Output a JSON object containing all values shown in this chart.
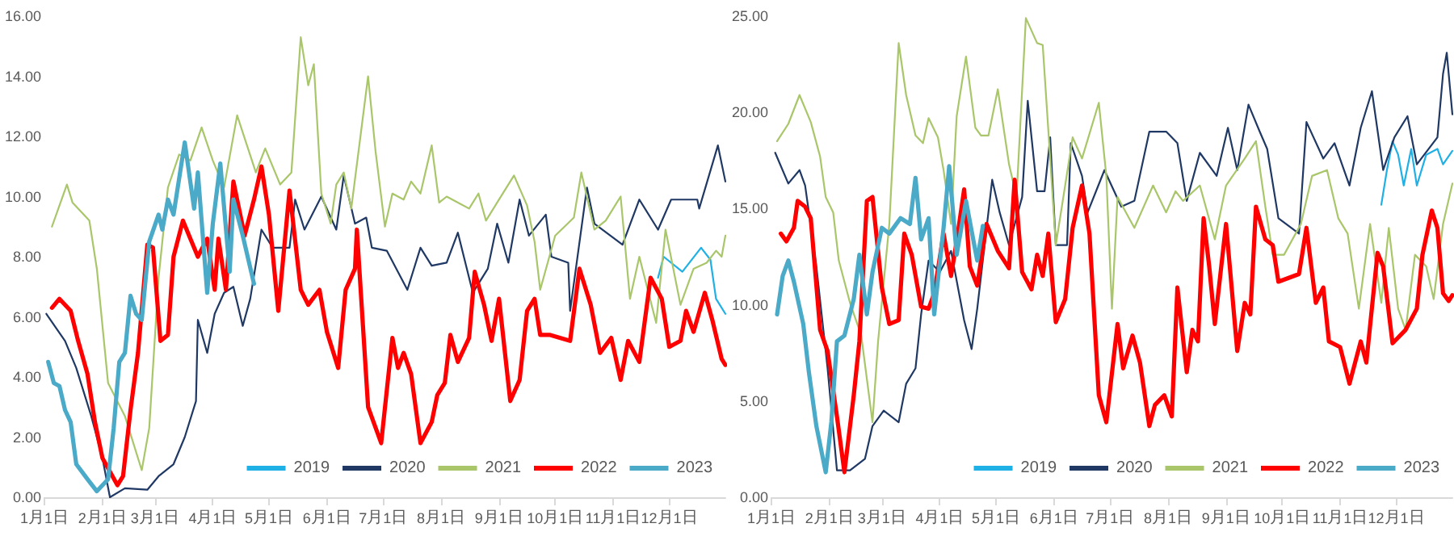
{
  "chart_data": [
    {
      "type": "line",
      "xlim": [
        "--01-01",
        "--12-31"
      ],
      "xticks": [
        {
          "value": "--01-01",
          "label": "1月1日"
        },
        {
          "value": "--02-01",
          "label": "2月1日"
        },
        {
          "value": "--03-01",
          "label": "3月1日"
        },
        {
          "value": "--04-01",
          "label": "4月1日"
        },
        {
          "value": "--05-01",
          "label": "5月1日"
        },
        {
          "value": "--06-01",
          "label": "6月1日"
        },
        {
          "value": "--07-01",
          "label": "7月1日"
        },
        {
          "value": "--08-01",
          "label": "8月1日"
        },
        {
          "value": "--09-01",
          "label": "9月1日"
        },
        {
          "value": "--10-01",
          "label": "10月1日"
        },
        {
          "value": "--11-01",
          "label": "11月1日"
        },
        {
          "value": "--12-01",
          "label": "12月1日"
        }
      ],
      "ylim": [
        0,
        16
      ],
      "yticks": [
        {
          "value": 0,
          "label": "0.00"
        },
        {
          "value": 2,
          "label": "2.00"
        },
        {
          "value": 4,
          "label": "4.00"
        },
        {
          "value": 6,
          "label": "6.00"
        },
        {
          "value": 8,
          "label": "8.00"
        },
        {
          "value": 10,
          "label": "10.00"
        },
        {
          "value": 12,
          "label": "12.00"
        },
        {
          "value": 14,
          "label": "14.00"
        },
        {
          "value": 16,
          "label": "16.00"
        }
      ],
      "legend": "bottom right",
      "grid": false,
      "marker": "none",
      "series": [
        {
          "name": "2019",
          "color": "#1fb0e6",
          "x": [
            "--11-25",
            "--11-28",
            "--12-08",
            "--12-18",
            "--12-23",
            "--12-26",
            "--12-31"
          ],
          "values": [
            7.3,
            8.0,
            7.5,
            8.3,
            7.9,
            6.6,
            6.1
          ]
        },
        {
          "name": "2020",
          "color": "#1f3864",
          "x": [
            "--01-02",
            "--01-12",
            "--01-18",
            "--01-26",
            "--02-01",
            "--02-05",
            "--02-13",
            "--02-25",
            "--03-03",
            "--03-11",
            "--03-17",
            "--03-23",
            "--03-24",
            "--03-29",
            "--04-02",
            "--04-07",
            "--04-12",
            "--04-17",
            "--04-21",
            "--04-27",
            "--05-03",
            "--05-12",
            "--05-15",
            "--05-20",
            "--05-29",
            "--06-06",
            "--06-10",
            "--06-16",
            "--06-22",
            "--06-25",
            "--07-03",
            "--07-14",
            "--07-21",
            "--07-27",
            "--08-04",
            "--08-10",
            "--08-18",
            "--08-26",
            "--08-31",
            "--09-06",
            "--09-12",
            "--09-17",
            "--09-26",
            "--09-29",
            "--10-08",
            "--10-09",
            "--10-18",
            "--10-22",
            "--11-06",
            "--11-15",
            "--11-25",
            "--12-02",
            "--12-16",
            "--12-17",
            "--12-27",
            "--12-31"
          ],
          "values": [
            6.1,
            5.2,
            4.3,
            2.7,
            1.3,
            0.0,
            0.3,
            0.25,
            0.7,
            1.1,
            2.0,
            3.2,
            5.9,
            4.8,
            6.1,
            6.8,
            7.0,
            5.7,
            6.6,
            8.9,
            8.3,
            8.3,
            9.9,
            8.9,
            10.0,
            8.9,
            10.7,
            9.1,
            9.3,
            8.3,
            8.2,
            6.9,
            8.3,
            7.7,
            7.8,
            8.8,
            6.8,
            7.6,
            9.1,
            7.8,
            9.9,
            8.7,
            9.4,
            8.0,
            7.8,
            6.2,
            10.3,
            9.1,
            8.4,
            9.9,
            8.9,
            9.9,
            9.9,
            9.6,
            11.7,
            10.5
          ]
        },
        {
          "name": "2021",
          "color": "#a9c66a",
          "x": [
            "--01-05",
            "--01-13",
            "--01-16",
            "--01-25",
            "--01-29",
            "--02-04",
            "--02-13",
            "--02-22",
            "--02-26",
            "--03-03",
            "--03-08",
            "--03-14",
            "--03-20",
            "--03-26",
            "--04-01",
            "--04-07",
            "--04-14",
            "--04-24",
            "--04-29",
            "--05-07",
            "--05-13",
            "--05-18",
            "--05-22",
            "--05-25",
            "--05-29",
            "--06-03",
            "--06-06",
            "--06-10",
            "--06-14",
            "--06-23",
            "--06-27",
            "--07-02",
            "--07-06",
            "--07-12",
            "--07-16",
            "--07-21",
            "--07-27",
            "--07-31",
            "--08-04",
            "--08-16",
            "--08-21",
            "--08-25",
            "--08-31",
            "--09-09",
            "--09-16",
            "--09-20",
            "--09-23",
            "--10-01",
            "--10-11",
            "--10-15",
            "--10-22",
            "--10-28",
            "--11-05",
            "--11-10",
            "--11-15",
            "--11-24",
            "--11-29",
            "--12-07",
            "--12-14",
            "--12-21",
            "--12-26",
            "--12-29",
            "--12-31"
          ],
          "values": [
            9.0,
            10.4,
            9.8,
            9.2,
            7.6,
            3.8,
            2.7,
            0.9,
            2.3,
            7.3,
            10.3,
            11.4,
            11.2,
            12.3,
            11.2,
            10.3,
            12.7,
            10.8,
            11.6,
            10.4,
            10.8,
            15.3,
            13.7,
            14.4,
            10.1,
            9.1,
            10.4,
            10.8,
            9.6,
            14.0,
            11.5,
            9.0,
            10.1,
            9.9,
            10.5,
            10.1,
            11.7,
            9.8,
            10.0,
            9.6,
            10.1,
            9.2,
            9.8,
            10.7,
            9.7,
            8.5,
            6.9,
            8.7,
            9.3,
            10.8,
            8.9,
            9.2,
            10.0,
            6.6,
            8.0,
            5.8,
            8.9,
            6.4,
            7.6,
            7.8,
            8.2,
            8.0,
            8.7
          ]
        },
        {
          "name": "2022",
          "color": "#ff0000",
          "x": [
            "--01-05",
            "--01-09",
            "--01-15",
            "--01-19",
            "--01-24",
            "--01-28",
            "--02-01",
            "--02-09",
            "--02-12",
            "--02-16",
            "--02-20",
            "--02-25",
            "--02-28",
            "--03-04",
            "--03-08",
            "--03-11",
            "--03-16",
            "--03-20",
            "--03-24",
            "--03-29",
            "--04-02",
            "--04-04",
            "--04-08",
            "--04-12",
            "--04-18",
            "--04-23",
            "--04-27",
            "--05-01",
            "--05-06",
            "--05-12",
            "--05-18",
            "--05-22",
            "--05-28",
            "--06-01",
            "--06-07",
            "--06-11",
            "--06-16",
            "--06-17",
            "--06-23",
            "--06-30",
            "--07-06",
            "--07-09",
            "--07-12",
            "--07-16",
            "--07-21",
            "--07-27",
            "--07-30",
            "--08-03",
            "--08-06",
            "--08-10",
            "--08-16",
            "--08-19",
            "--08-24",
            "--08-28",
            "--09-01",
            "--09-07",
            "--09-12",
            "--09-16",
            "--09-20",
            "--09-23",
            "--09-28",
            "--10-09",
            "--10-14",
            "--10-20",
            "--10-25",
            "--10-31",
            "--11-05",
            "--11-09",
            "--11-15",
            "--11-21",
            "--11-27",
            "--12-01",
            "--12-07",
            "--12-10",
            "--12-14",
            "--12-20",
            "--12-24",
            "--12-29",
            "--12-31"
          ],
          "values": [
            6.3,
            6.6,
            6.2,
            5.2,
            4.1,
            2.5,
            1.3,
            0.4,
            0.7,
            2.9,
            4.8,
            8.4,
            8.3,
            5.2,
            5.4,
            8.0,
            9.2,
            8.6,
            8.0,
            8.6,
            6.9,
            8.6,
            6.9,
            10.5,
            8.7,
            9.9,
            11.0,
            9.4,
            6.2,
            10.2,
            6.9,
            6.4,
            6.9,
            5.5,
            4.3,
            6.9,
            7.6,
            8.9,
            3.0,
            1.8,
            5.3,
            4.3,
            4.8,
            4.1,
            1.8,
            2.5,
            3.4,
            3.8,
            5.4,
            4.5,
            5.3,
            7.5,
            6.4,
            5.2,
            6.6,
            3.2,
            3.9,
            6.2,
            6.6,
            5.4,
            5.4,
            5.2,
            7.6,
            6.4,
            4.8,
            5.3,
            3.9,
            5.2,
            4.5,
            7.3,
            6.6,
            5.0,
            5.2,
            6.2,
            5.5,
            6.8,
            5.9,
            4.6,
            4.4
          ]
        },
        {
          "name": "2023",
          "color": "#4aaac8",
          "x": [
            "--01-03",
            "--01-06",
            "--01-09",
            "--01-12",
            "--01-15",
            "--01-18",
            "--01-24",
            "--01-29",
            "--02-04",
            "--02-07",
            "--02-10",
            "--02-13",
            "--02-16",
            "--02-19",
            "--02-22",
            "--02-26",
            "--03-03",
            "--03-05",
            "--03-08",
            "--03-11",
            "--03-17",
            "--03-22",
            "--03-24",
            "--03-29",
            "--04-01",
            "--04-05",
            "--04-10",
            "--04-12",
            "--04-17",
            "--04-23"
          ],
          "values": [
            4.5,
            3.8,
            3.7,
            2.9,
            2.5,
            1.1,
            0.6,
            0.2,
            0.6,
            2.3,
            4.5,
            4.8,
            6.7,
            6.1,
            5.9,
            8.5,
            9.4,
            8.9,
            9.9,
            9.4,
            11.8,
            9.6,
            10.8,
            6.8,
            9.1,
            11.1,
            7.5,
            9.9,
            8.7,
            7.1
          ]
        }
      ]
    },
    {
      "type": "line",
      "xlim": [
        "--01-01",
        "--12-31"
      ],
      "xticks": [
        {
          "value": "--01-01",
          "label": "1月1日"
        },
        {
          "value": "--02-01",
          "label": "2月1日"
        },
        {
          "value": "--03-01",
          "label": "3月1日"
        },
        {
          "value": "--04-01",
          "label": "4月1日"
        },
        {
          "value": "--05-01",
          "label": "5月1日"
        },
        {
          "value": "--06-01",
          "label": "6月1日"
        },
        {
          "value": "--07-01",
          "label": "7月1日"
        },
        {
          "value": "--08-01",
          "label": "8月1日"
        },
        {
          "value": "--09-01",
          "label": "9月1日"
        },
        {
          "value": "--10-01",
          "label": "10月1日"
        },
        {
          "value": "--11-01",
          "label": "11月1日"
        },
        {
          "value": "--12-01",
          "label": "12月1日"
        }
      ],
      "ylim": [
        0,
        25
      ],
      "yticks": [
        {
          "value": 0,
          "label": "0.00"
        },
        {
          "value": 5,
          "label": "5.00"
        },
        {
          "value": 10,
          "label": "10.00"
        },
        {
          "value": 15,
          "label": "15.00"
        },
        {
          "value": 20,
          "label": "20.00"
        },
        {
          "value": 25,
          "label": "25.00"
        }
      ],
      "legend": "bottom right",
      "grid": false,
      "marker": "none",
      "series": [
        {
          "name": "2019",
          "color": "#1fb0e6",
          "x": [
            "--11-23",
            "--11-26",
            "--11-29",
            "--12-02",
            "--12-05",
            "--12-09",
            "--12-12",
            "--12-17",
            "--12-23",
            "--12-26",
            "--12-31"
          ],
          "values": [
            15.2,
            17.0,
            18.5,
            17.8,
            16.2,
            18.1,
            16.2,
            17.8,
            18.1,
            17.3,
            18.0
          ]
        },
        {
          "name": "2020",
          "color": "#1f3864",
          "x": [
            "--01-03",
            "--01-10",
            "--01-16",
            "--01-19",
            "--01-25",
            "--01-31",
            "--02-05",
            "--02-12",
            "--02-20",
            "--02-24",
            "--03-02",
            "--03-10",
            "--03-14",
            "--03-19",
            "--03-22",
            "--03-26",
            "--04-01",
            "--04-07",
            "--04-14",
            "--04-18",
            "--04-21",
            "--04-29",
            "--05-03",
            "--05-08",
            "--05-15",
            "--05-18",
            "--05-23",
            "--05-27",
            "--05-30",
            "--06-02",
            "--06-08",
            "--06-10",
            "--06-16",
            "--06-19",
            "--06-28",
            "--07-07",
            "--07-14",
            "--07-22",
            "--07-31",
            "--08-06",
            "--08-11",
            "--08-18",
            "--08-27",
            "--09-02",
            "--09-07",
            "--09-13",
            "--09-19",
            "--09-23",
            "--09-29",
            "--10-10",
            "--10-14",
            "--10-23",
            "--10-29",
            "--11-06",
            "--11-12",
            "--11-18",
            "--11-24",
            "--11-30",
            "--12-07",
            "--12-12",
            "--12-23",
            "--12-26",
            "--12-28",
            "--12-31"
          ],
          "values": [
            17.9,
            16.3,
            17.0,
            16.2,
            12.0,
            6.7,
            1.4,
            1.4,
            2.0,
            3.7,
            4.5,
            3.9,
            5.9,
            6.7,
            9.5,
            12.3,
            11.7,
            12.8,
            9.2,
            7.7,
            9.8,
            16.5,
            14.8,
            13.1,
            15.6,
            20.6,
            15.9,
            15.9,
            18.7,
            13.1,
            13.1,
            18.4,
            16.7,
            14.8,
            17.0,
            15.1,
            15.4,
            19.0,
            19.0,
            18.4,
            15.4,
            17.9,
            16.7,
            19.2,
            17.0,
            20.4,
            19.0,
            18.1,
            14.5,
            13.7,
            19.5,
            17.6,
            18.4,
            16.2,
            19.2,
            21.1,
            17.0,
            18.7,
            19.8,
            17.3,
            18.7,
            22.0,
            23.1,
            19.9
          ]
        },
        {
          "name": "2021",
          "color": "#a9c66a",
          "x": [
            "--01-04",
            "--01-10",
            "--01-16",
            "--01-22",
            "--01-27",
            "--01-30",
            "--02-03",
            "--02-06",
            "--02-12",
            "--02-18",
            "--02-24",
            "--02-27",
            "--03-05",
            "--03-10",
            "--03-14",
            "--03-19",
            "--03-23",
            "--03-26",
            "--03-31",
            "--04-03",
            "--04-07",
            "--04-10",
            "--04-15",
            "--04-20",
            "--04-23",
            "--04-27",
            "--05-02",
            "--05-08",
            "--05-12",
            "--05-17",
            "--05-23",
            "--05-26",
            "--05-30",
            "--06-02",
            "--06-07",
            "--06-11",
            "--06-16",
            "--06-25",
            "--06-29",
            "--07-02",
            "--07-05",
            "--07-14",
            "--07-24",
            "--07-31",
            "--08-05",
            "--08-09",
            "--08-18",
            "--08-26",
            "--09-01",
            "--09-11",
            "--09-17",
            "--09-22",
            "--09-26",
            "--10-02",
            "--10-11",
            "--10-17",
            "--10-25",
            "--10-31",
            "--11-05",
            "--11-11",
            "--11-17",
            "--11-23",
            "--11-27",
            "--12-02",
            "--12-06",
            "--12-11",
            "--12-17",
            "--12-21",
            "--12-26",
            "--12-31"
          ],
          "values": [
            18.5,
            19.4,
            20.9,
            19.5,
            17.7,
            15.6,
            14.8,
            12.3,
            10.1,
            8.4,
            3.9,
            8.1,
            14.2,
            23.6,
            20.9,
            18.8,
            18.4,
            19.7,
            18.7,
            17.0,
            14.2,
            19.8,
            22.9,
            19.2,
            18.8,
            18.8,
            21.2,
            17.3,
            15.6,
            24.9,
            23.6,
            23.5,
            17.6,
            13.1,
            16.2,
            18.7,
            17.6,
            20.5,
            16.7,
            9.8,
            15.6,
            14.0,
            16.2,
            14.8,
            15.9,
            15.4,
            16.2,
            13.4,
            16.2,
            17.6,
            18.5,
            15.1,
            12.6,
            12.6,
            14.2,
            16.7,
            17.0,
            14.5,
            13.7,
            9.8,
            14.2,
            10.1,
            14.0,
            9.8,
            8.7,
            12.6,
            12.0,
            10.3,
            14.2,
            16.3
          ]
        },
        {
          "name": "2022",
          "color": "#ff0000",
          "x": [
            "--01-06",
            "--01-09",
            "--01-13",
            "--01-15",
            "--01-19",
            "--01-22",
            "--01-27",
            "--01-31",
            "--02-05",
            "--02-09",
            "--02-14",
            "--02-17",
            "--02-21",
            "--02-24",
            "--03-01",
            "--03-05",
            "--03-10",
            "--03-13",
            "--03-17",
            "--03-22",
            "--03-26",
            "--03-29",
            "--04-03",
            "--04-07",
            "--04-10",
            "--04-14",
            "--04-17",
            "--04-21",
            "--04-26",
            "--05-02",
            "--05-08",
            "--05-11",
            "--05-15",
            "--05-20",
            "--05-23",
            "--05-26",
            "--05-29",
            "--06-02",
            "--06-07",
            "--06-11",
            "--06-16",
            "--06-20",
            "--06-25",
            "--06-29",
            "--07-05",
            "--07-08",
            "--07-13",
            "--07-17",
            "--07-22",
            "--07-25",
            "--07-30",
            "--08-03",
            "--08-06",
            "--08-11",
            "--08-14",
            "--08-17",
            "--08-20",
            "--08-23",
            "--08-26",
            "--09-01",
            "--09-07",
            "--09-11",
            "--09-14",
            "--09-17",
            "--09-22",
            "--09-26",
            "--09-29",
            "--10-10",
            "--10-14",
            "--10-19",
            "--10-23",
            "--10-26",
            "--11-01",
            "--11-06",
            "--11-12",
            "--11-15",
            "--11-21",
            "--11-24",
            "--11-29",
            "--12-06",
            "--12-12",
            "--12-15",
            "--12-20",
            "--12-23",
            "--12-26",
            "--12-29",
            "--12-31"
          ],
          "values": [
            13.7,
            13.3,
            14.0,
            15.4,
            15.1,
            14.5,
            8.7,
            7.6,
            4.2,
            1.3,
            5.3,
            8.1,
            15.4,
            15.6,
            10.9,
            9.0,
            9.2,
            13.7,
            12.6,
            9.9,
            9.8,
            10.6,
            13.7,
            11.5,
            13.3,
            16.0,
            12.0,
            11.0,
            14.2,
            12.8,
            11.9,
            16.5,
            11.7,
            10.8,
            12.6,
            11.5,
            13.7,
            9.1,
            10.3,
            14.0,
            16.2,
            13.7,
            5.3,
            3.9,
            9.0,
            6.7,
            8.4,
            7.0,
            3.7,
            4.8,
            5.3,
            4.2,
            10.9,
            6.5,
            8.7,
            8.1,
            14.5,
            12.0,
            9.0,
            14.2,
            7.6,
            10.1,
            9.5,
            15.1,
            13.4,
            13.1,
            11.2,
            11.6,
            14.0,
            10.1,
            10.9,
            8.1,
            7.8,
            5.9,
            8.1,
            7.0,
            12.7,
            12.0,
            8.0,
            8.7,
            9.8,
            12.6,
            14.9,
            14.0,
            10.6,
            10.2,
            10.5
          ]
        },
        {
          "name": "2023",
          "color": "#4aaac8",
          "x": [
            "--01-04",
            "--01-07",
            "--01-10",
            "--01-13",
            "--01-18",
            "--01-21",
            "--01-25",
            "--01-30",
            "--02-02",
            "--02-05",
            "--02-09",
            "--02-14",
            "--02-17",
            "--02-21",
            "--02-24",
            "--03-01",
            "--03-05",
            "--03-11",
            "--03-16",
            "--03-19",
            "--03-22",
            "--03-26",
            "--03-29",
            "--04-03",
            "--04-06",
            "--04-10",
            "--04-15",
            "--04-20",
            "--04-21",
            "--04-24"
          ],
          "values": [
            9.5,
            11.5,
            12.3,
            11.2,
            9.0,
            6.5,
            3.7,
            1.3,
            3.9,
            8.1,
            8.4,
            10.3,
            12.6,
            9.5,
            11.7,
            14.0,
            13.7,
            14.5,
            14.2,
            16.6,
            13.4,
            14.5,
            9.5,
            14.0,
            17.2,
            12.6,
            15.4,
            12.8,
            12.3,
            14.1
          ]
        }
      ]
    }
  ]
}
